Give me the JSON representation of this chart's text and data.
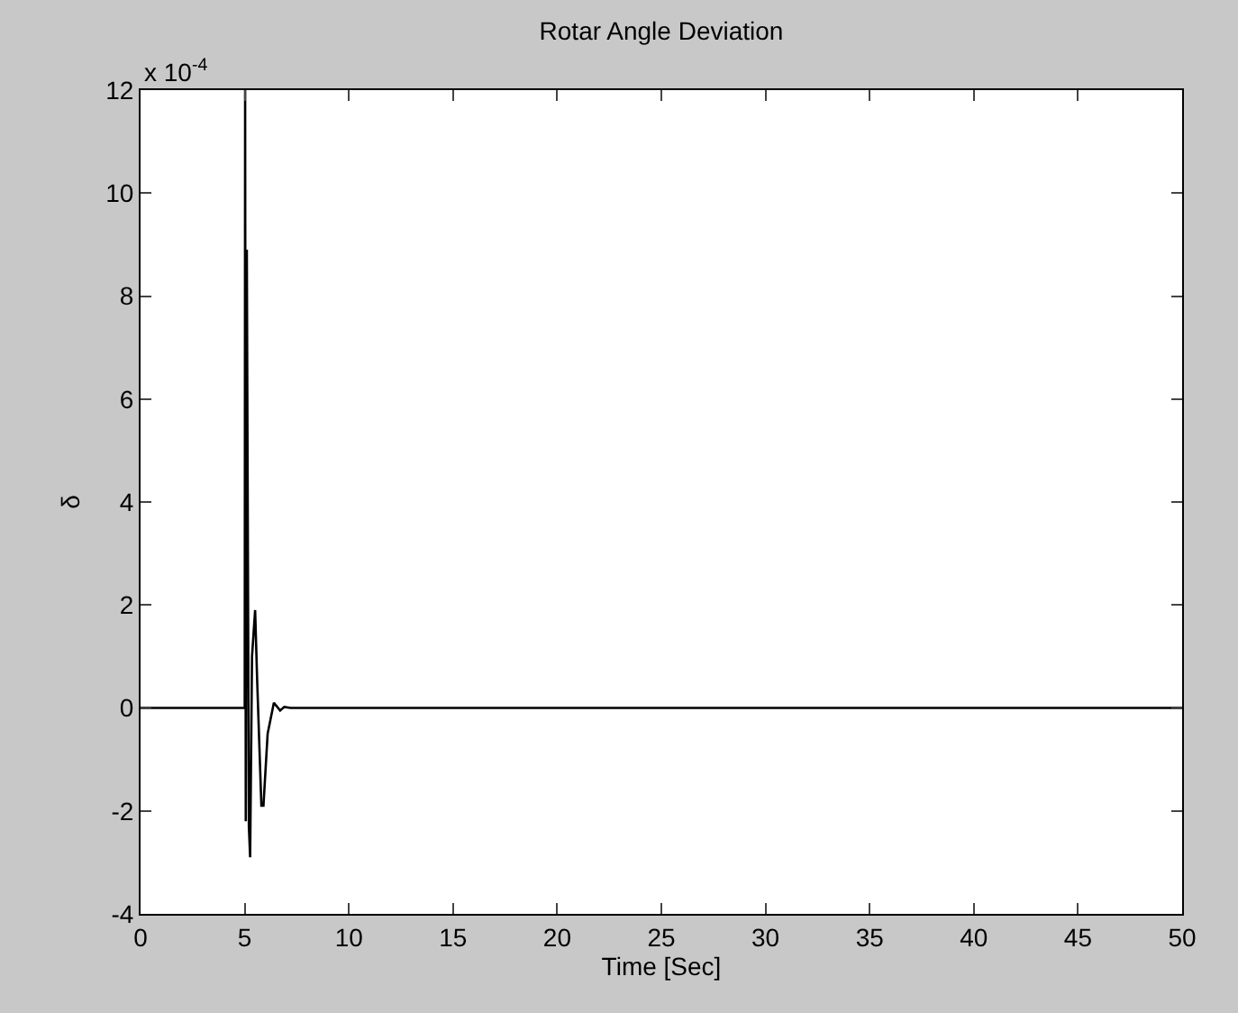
{
  "chart_data": {
    "type": "line",
    "title": "Rotar Angle Deviation",
    "xlabel": "Time [Sec]",
    "ylabel": "δ",
    "annotations": [
      "x 10$^{-4}$"
    ],
    "x": [
      0,
      5,
      5.02,
      5.05,
      5.1,
      5.2,
      5.26,
      5.35,
      5.5,
      5.6,
      5.8,
      5.9,
      6.1,
      6.4,
      6.7,
      6.9,
      7.2,
      50
    ],
    "series": [
      {
        "color": "#000000",
        "values": [
          0,
          0,
          12,
          -2.2,
          8.9,
          -2.3,
          -2.9,
          1.0,
          1.9,
          0.5,
          -1.9,
          -1.9,
          -0.5,
          0.1,
          -0.05,
          0.02,
          0,
          0
        ]
      }
    ],
    "xlim": [
      0,
      50
    ],
    "xticks": [
      0,
      5,
      10,
      15,
      20,
      25,
      30,
      35,
      40,
      45,
      50
    ],
    "ylim": [
      -4,
      12
    ],
    "yticks": [
      -4,
      -2,
      0,
      2,
      4,
      6,
      8,
      10,
      12
    ]
  }
}
